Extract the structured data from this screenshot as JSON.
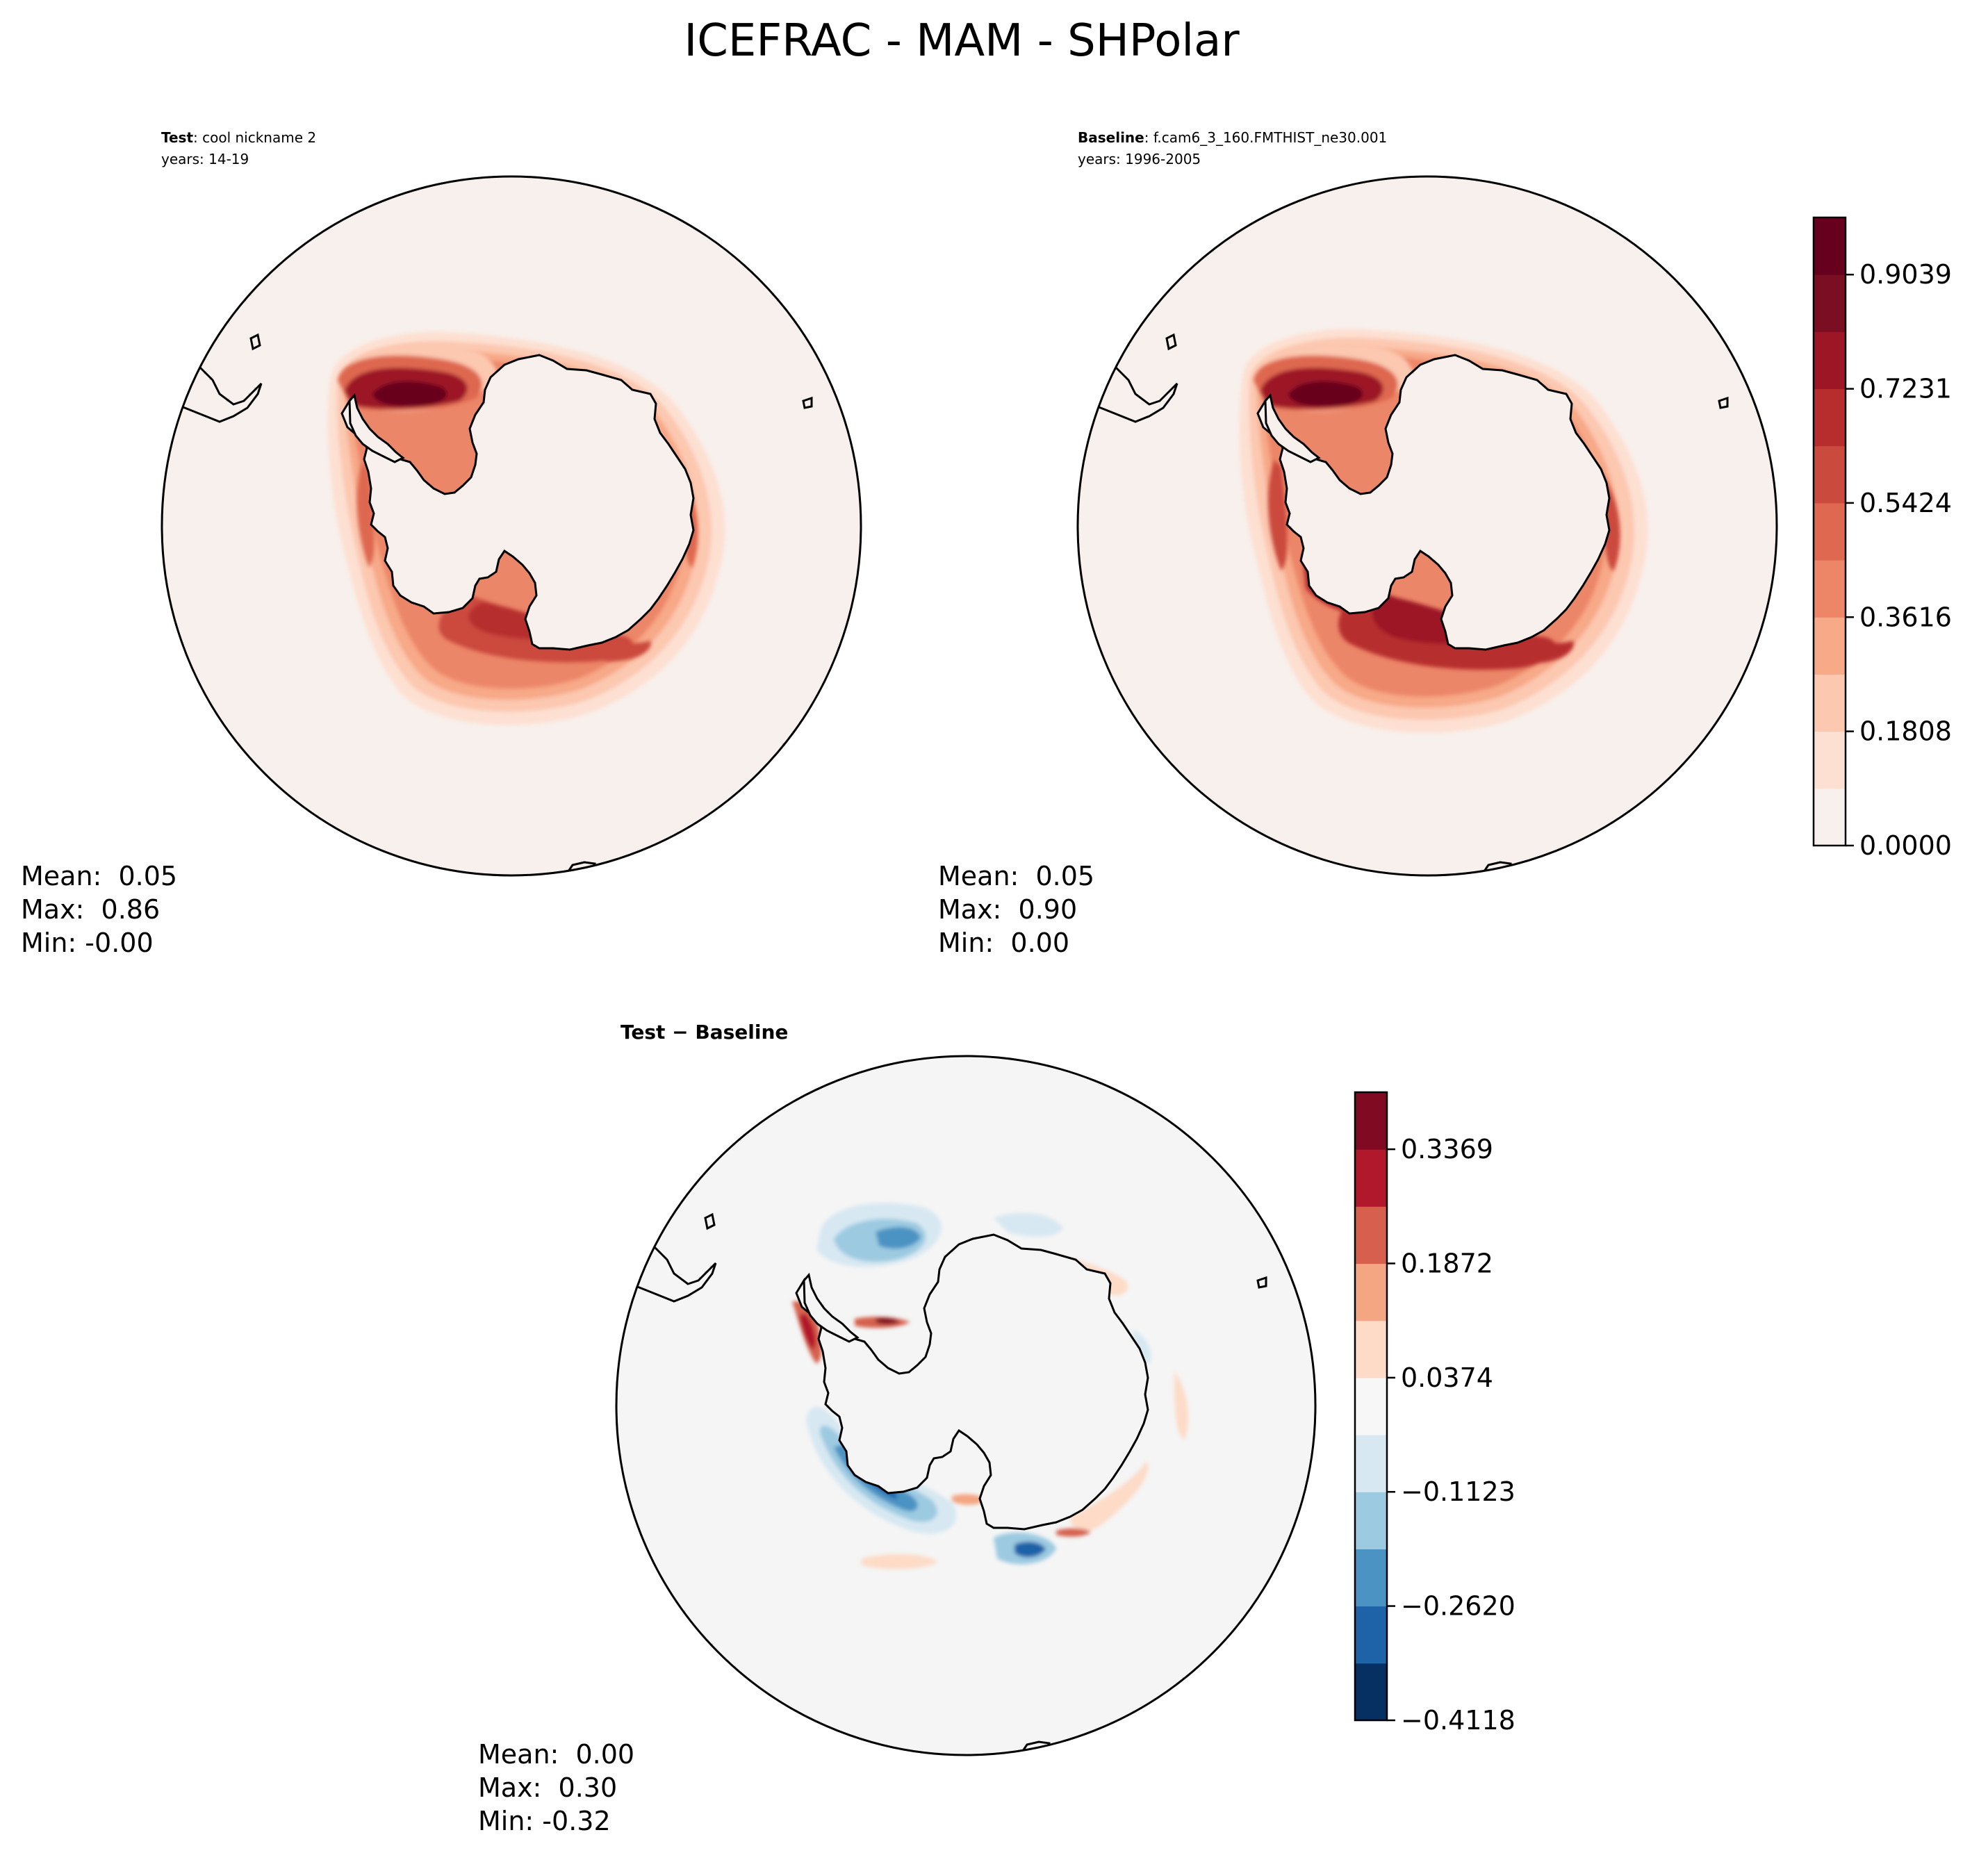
{
  "figure": {
    "title": "ICEFRAC - MAM - SHPolar"
  },
  "panels": [
    {
      "id": "test",
      "label_bold": "Test",
      "label_rest": ": cool nickname 2",
      "years": "years: 14-19",
      "stats": {
        "mean": "Mean:  0.05",
        "max": "Max:  0.86",
        "min": "Min: -0.00"
      }
    },
    {
      "id": "baseline",
      "label_bold": "Baseline",
      "label_rest": ": f.cam6_3_160.FMTHIST_ne30.001",
      "years": "years: 1996-2005",
      "stats": {
        "mean": "Mean:  0.05",
        "max": "Max:  0.90",
        "min": "Min:  0.00"
      }
    },
    {
      "id": "diff",
      "label_bold": "Test − Baseline",
      "label_rest": "",
      "years": "",
      "stats": {
        "mean": "Mean:  0.00",
        "max": "Max:  0.30",
        "min": "Min: -0.32"
      }
    }
  ],
  "chart_data": [
    {
      "type": "heatmap",
      "panel": "test",
      "projection": "south-polar-stereographic",
      "value_range": [
        0.0,
        1.0
      ],
      "colormap": "Reds"
    },
    {
      "type": "heatmap",
      "panel": "baseline",
      "projection": "south-polar-stereographic",
      "value_range": [
        0.0,
        1.0
      ],
      "colormap": "Reds"
    },
    {
      "type": "heatmap",
      "panel": "diff",
      "projection": "south-polar-stereographic",
      "value_range": [
        -0.4118,
        0.4118
      ],
      "colormap": "RdBu_r"
    }
  ],
  "colorbars": {
    "main": {
      "levels": [
        "#f7f0ec",
        "#fde0d2",
        "#fcc8b0",
        "#f7a988",
        "#ec8667",
        "#de6850",
        "#cb4a3e",
        "#b72d2e",
        "#9c1625",
        "#7a0e22",
        "#67001f"
      ],
      "tick_labels": [
        "0.9039",
        "0.7231",
        "0.5424",
        "0.3616",
        "0.1808",
        "0.0000"
      ],
      "tick_values": [
        0.9039,
        0.7231,
        0.5424,
        0.3616,
        0.1808,
        0.0
      ]
    },
    "diff": {
      "levels": [
        "#053061",
        "#1e62a8",
        "#4b93c3",
        "#9ccae1",
        "#d7e8f2",
        "#f7f7f7",
        "#fddbc7",
        "#f4a582",
        "#d6604d",
        "#b2182b",
        "#7f0a22"
      ],
      "tick_labels": [
        "0.3369",
        "0.1872",
        "0.0374",
        "−0.1123",
        "−0.2620",
        "−0.4118"
      ],
      "tick_values": [
        0.3369,
        0.1872,
        0.0374,
        -0.1123,
        -0.262,
        -0.4118
      ]
    }
  },
  "colors": {
    "ocean_main": "#f8f0ec",
    "ocean_diff": "#f5f5f5",
    "land": "#ffffff",
    "coast": "#000000"
  }
}
